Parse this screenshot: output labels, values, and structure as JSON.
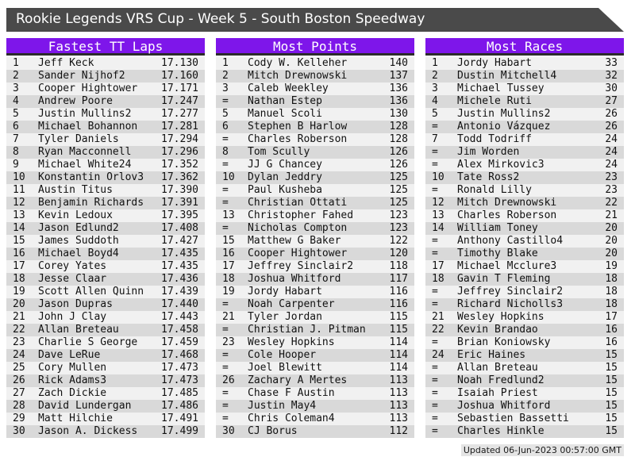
{
  "title_bar": {
    "text": "Rookie Legends VRS Cup - Week 5 - South Boston Speedway"
  },
  "footer": {
    "updated": "Updated 06-Jun-2023 00:57:00 GMT"
  },
  "colors": {
    "accent_purple": "#7E16EA",
    "title_bar_bg": "#4A4A4A",
    "row_odd": "#F1F1F1",
    "row_even": "#D9D9D9",
    "header_underline": "#2B2B2B"
  },
  "tables": [
    {
      "title": "Fastest TT Laps",
      "rows": [
        [
          "1",
          "Jeff Keck",
          "17.130"
        ],
        [
          "2",
          "Sander Nijhof2",
          "17.160"
        ],
        [
          "3",
          "Cooper Hightower",
          "17.171"
        ],
        [
          "4",
          "Andrew Poore",
          "17.247"
        ],
        [
          "5",
          "Justin Mullins2",
          "17.277"
        ],
        [
          "6",
          "Michael Bohannon",
          "17.281"
        ],
        [
          "7",
          "Tyler Daniels",
          "17.294"
        ],
        [
          "8",
          "Ryan Macconnell",
          "17.296"
        ],
        [
          "9",
          "Michael White24",
          "17.352"
        ],
        [
          "10",
          "Konstantin Orlov3",
          "17.362"
        ],
        [
          "11",
          "Austin Titus",
          "17.390"
        ],
        [
          "12",
          "Benjamin Richards",
          "17.391"
        ],
        [
          "13",
          "Kevin Ledoux",
          "17.395"
        ],
        [
          "14",
          "Jason Edlund2",
          "17.408"
        ],
        [
          "15",
          "James Suddoth",
          "17.427"
        ],
        [
          "16",
          "Michael Boyd4",
          "17.435"
        ],
        [
          "17",
          "Corey Yates",
          "17.435"
        ],
        [
          "18",
          "Jesse Claar",
          "17.436"
        ],
        [
          "19",
          "Scott Allen Quinn",
          "17.439"
        ],
        [
          "20",
          "Jason Dupras",
          "17.440"
        ],
        [
          "21",
          "John J Clay",
          "17.443"
        ],
        [
          "22",
          "Allan Breteau",
          "17.458"
        ],
        [
          "23",
          "Charlie S George",
          "17.459"
        ],
        [
          "24",
          "Dave LeRue",
          "17.468"
        ],
        [
          "25",
          "Cory Mullen",
          "17.473"
        ],
        [
          "26",
          "Rick Adams3",
          "17.473"
        ],
        [
          "27",
          "Zach Dickie",
          "17.485"
        ],
        [
          "28",
          "David Lundergan",
          "17.486"
        ],
        [
          "29",
          "Matt Hilchie",
          "17.491"
        ],
        [
          "30",
          "Jason A. Dickess",
          "17.499"
        ]
      ]
    },
    {
      "title": "Most Points",
      "rows": [
        [
          "1",
          "Cody W. Kelleher",
          "140"
        ],
        [
          "2",
          "Mitch Drewnowski",
          "137"
        ],
        [
          "3",
          "Caleb Weekley",
          "136"
        ],
        [
          "=",
          "Nathan Estep",
          "136"
        ],
        [
          "5",
          "Manuel Scoli",
          "130"
        ],
        [
          "6",
          "Stephen B Harlow",
          "128"
        ],
        [
          "=",
          "Charles Roberson",
          "128"
        ],
        [
          "8",
          "Tom Scully",
          "126"
        ],
        [
          "=",
          "JJ G Chancey",
          "126"
        ],
        [
          "10",
          "Dylan Jeddry",
          "125"
        ],
        [
          "=",
          "Paul Kusheba",
          "125"
        ],
        [
          "=",
          "Christian Ottati",
          "125"
        ],
        [
          "13",
          "Christopher Fahed",
          "123"
        ],
        [
          "=",
          "Nicholas Compton",
          "123"
        ],
        [
          "15",
          "Matthew G Baker",
          "122"
        ],
        [
          "16",
          "Cooper Hightower",
          "120"
        ],
        [
          "17",
          "Jeffrey Sinclair2",
          "118"
        ],
        [
          "18",
          "Joshua Whitford",
          "117"
        ],
        [
          "19",
          "Jordy Habart",
          "116"
        ],
        [
          "=",
          "Noah Carpenter",
          "116"
        ],
        [
          "21",
          "Tyler Jordan",
          "115"
        ],
        [
          "=",
          "Christian J. Pitman",
          "115"
        ],
        [
          "23",
          "Wesley Hopkins",
          "114"
        ],
        [
          "=",
          "Cole Hooper",
          "114"
        ],
        [
          "=",
          "Joel Blewitt",
          "114"
        ],
        [
          "26",
          "Zachary A Mertes",
          "113"
        ],
        [
          "=",
          "Chase F Austin",
          "113"
        ],
        [
          "=",
          "Justin May4",
          "113"
        ],
        [
          "=",
          "Chris Coleman4",
          "113"
        ],
        [
          "30",
          "CJ Borus",
          "112"
        ]
      ]
    },
    {
      "title": "Most Races",
      "rows": [
        [
          "1",
          "Jordy Habart",
          "33"
        ],
        [
          "2",
          "Dustin Mitchell4",
          "32"
        ],
        [
          "3",
          "Michael Tussey",
          "30"
        ],
        [
          "4",
          "Michele Ruti",
          "27"
        ],
        [
          "5",
          "Justin Mullins2",
          "26"
        ],
        [
          "=",
          "Antonio Vázquez",
          "26"
        ],
        [
          "7",
          "Todd Todriff",
          "24"
        ],
        [
          "=",
          "Jim Worden",
          "24"
        ],
        [
          "=",
          "Alex Mirkovic3",
          "24"
        ],
        [
          "10",
          "Tate Ross2",
          "23"
        ],
        [
          "=",
          "Ronald Lilly",
          "23"
        ],
        [
          "12",
          "Mitch Drewnowski",
          "22"
        ],
        [
          "13",
          "Charles Roberson",
          "21"
        ],
        [
          "14",
          "William Toney",
          "20"
        ],
        [
          "=",
          "Anthony Castillo4",
          "20"
        ],
        [
          "=",
          "Timothy Blake",
          "20"
        ],
        [
          "17",
          "Michael Mcclure3",
          "19"
        ],
        [
          "18",
          "Gavin T Fleming",
          "18"
        ],
        [
          "=",
          "Jeffrey Sinclair2",
          "18"
        ],
        [
          "=",
          "Richard Nicholls3",
          "18"
        ],
        [
          "21",
          "Wesley Hopkins",
          "17"
        ],
        [
          "22",
          "Kevin Brandao",
          "16"
        ],
        [
          "=",
          "Brian Koniowsky",
          "16"
        ],
        [
          "24",
          "Eric Haines",
          "15"
        ],
        [
          "=",
          "Allan Breteau",
          "15"
        ],
        [
          "=",
          "Noah Fredlund2",
          "15"
        ],
        [
          "=",
          "Isaiah Priest",
          "15"
        ],
        [
          "=",
          "Joshua Whitford",
          "15"
        ],
        [
          "=",
          "Sebastien Bassetti",
          "15"
        ],
        [
          "=",
          "Charles Hinkle",
          "15"
        ]
      ]
    }
  ]
}
